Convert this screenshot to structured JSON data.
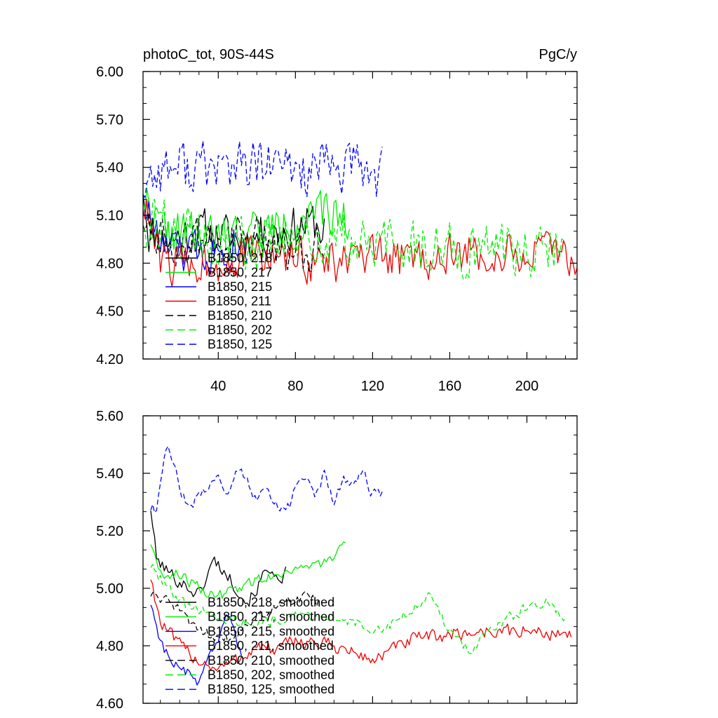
{
  "figure": {
    "title_left": "photoC_tot, 90S-44S",
    "title_right": "PgC/y"
  },
  "chart_data": [
    {
      "type": "line",
      "title": "photoC_tot, 90S-44S",
      "units": "PgC/y",
      "xlim": [
        1,
        226
      ],
      "ylim": [
        4.2,
        6.0
      ],
      "xticks": [
        40,
        80,
        120,
        160,
        200
      ],
      "xtick_labels": [
        "40",
        "80",
        "120",
        "160",
        "200"
      ],
      "yticks": [
        4.2,
        4.5,
        4.8,
        5.1,
        5.4,
        5.7,
        6.0
      ],
      "ytick_labels": [
        "4.20",
        "4.50",
        "4.80",
        "5.10",
        "5.40",
        "5.70",
        "6.00"
      ],
      "legend": "bottom-left",
      "series": [
        {
          "name": "B1850, 218",
          "color": "#000000",
          "dash": "solid",
          "noisy": true,
          "seed": 11,
          "control": [
            [
              1,
              5.3
            ],
            [
              4,
              5.0
            ],
            [
              15,
              4.95
            ],
            [
              30,
              5.0
            ],
            [
              50,
              4.95
            ],
            [
              70,
              5.0
            ],
            [
              90,
              5.05
            ],
            [
              95,
              5.0
            ]
          ],
          "amp": 0.28
        },
        {
          "name": "B1850, 217",
          "color": "#00ee00",
          "dash": "solid",
          "noisy": true,
          "seed": 22,
          "control": [
            [
              1,
              5.25
            ],
            [
              10,
              5.0
            ],
            [
              40,
              4.95
            ],
            [
              60,
              5.0
            ],
            [
              80,
              5.05
            ],
            [
              100,
              5.1
            ],
            [
              108,
              5.1
            ]
          ],
          "amp": 0.3
        },
        {
          "name": "B1850, 215",
          "color": "#0000ff",
          "dash": "solid",
          "noisy": true,
          "seed": 33,
          "control": [
            [
              1,
              5.2
            ],
            [
              10,
              4.9
            ],
            [
              25,
              4.85
            ],
            [
              40,
              4.9
            ],
            [
              50,
              4.95
            ],
            [
              55,
              4.9
            ]
          ],
          "amp": 0.3
        },
        {
          "name": "B1850, 211",
          "color": "#ee0000",
          "dash": "solid",
          "noisy": true,
          "seed": 44,
          "control": [
            [
              1,
              5.2
            ],
            [
              10,
              4.8
            ],
            [
              30,
              4.8
            ],
            [
              60,
              4.85
            ],
            [
              100,
              4.8
            ],
            [
              160,
              4.85
            ],
            [
              200,
              4.85
            ],
            [
              226,
              4.85
            ]
          ],
          "amp": 0.28
        },
        {
          "name": "B1850, 210",
          "color": "#000000",
          "dash": "dash",
          "noisy": true,
          "seed": 55,
          "control": [
            [
              1,
              5.1
            ],
            [
              20,
              4.9
            ],
            [
              50,
              4.95
            ],
            [
              80,
              4.9
            ],
            [
              95,
              4.9
            ]
          ],
          "amp": 0.3
        },
        {
          "name": "B1850, 202",
          "color": "#00ee00",
          "dash": "dash",
          "noisy": true,
          "seed": 66,
          "control": [
            [
              1,
              5.1
            ],
            [
              40,
              4.9
            ],
            [
              90,
              4.95
            ],
            [
              130,
              4.9
            ],
            [
              170,
              4.9
            ],
            [
              220,
              4.9
            ]
          ],
          "amp": 0.35
        },
        {
          "name": "B1850, 125",
          "color": "#0000ff",
          "dash": "dash",
          "noisy": true,
          "seed": 77,
          "control": [
            [
              1,
              5.3
            ],
            [
              10,
              5.4
            ],
            [
              30,
              5.4
            ],
            [
              60,
              5.4
            ],
            [
              90,
              5.38
            ],
            [
              110,
              5.4
            ],
            [
              125,
              5.35
            ]
          ],
          "amp": 0.35
        }
      ]
    },
    {
      "type": "line",
      "title": "",
      "xlim": [
        1,
        226
      ],
      "ylim": [
        4.6,
        5.6
      ],
      "xticks": [
        40,
        80,
        120,
        160,
        200
      ],
      "xtick_labels": [],
      "yticks": [
        4.6,
        4.8,
        5.0,
        5.2,
        5.4,
        5.6
      ],
      "ytick_labels": [
        "4.60",
        "4.80",
        "5.00",
        "5.20",
        "5.40",
        "5.60"
      ],
      "legend": "bottom-left",
      "series": [
        {
          "name": "B1850, 218, smoothed",
          "color": "#000000",
          "dash": "solid",
          "seed": 101,
          "amp": 0.05,
          "control": [
            [
              5,
              5.28
            ],
            [
              8,
              5.1
            ],
            [
              15,
              5.05
            ],
            [
              25,
              5.0
            ],
            [
              30,
              4.98
            ],
            [
              38,
              5.1
            ],
            [
              44,
              5.05
            ],
            [
              50,
              5.0
            ],
            [
              55,
              4.95
            ],
            [
              60,
              5.0
            ],
            [
              64,
              5.05
            ],
            [
              68,
              5.08
            ],
            [
              72,
              5.0
            ],
            [
              75,
              5.05
            ]
          ]
        },
        {
          "name": "B1850, 217, smoothed",
          "color": "#00ee00",
          "dash": "solid",
          "seed": 102,
          "amp": 0.04,
          "control": [
            [
              5,
              5.16
            ],
            [
              10,
              5.05
            ],
            [
              20,
              5.05
            ],
            [
              30,
              5.0
            ],
            [
              40,
              4.97
            ],
            [
              50,
              5.0
            ],
            [
              60,
              5.03
            ],
            [
              70,
              5.05
            ],
            [
              80,
              5.07
            ],
            [
              90,
              5.08
            ],
            [
              100,
              5.1
            ],
            [
              106,
              5.15
            ]
          ]
        },
        {
          "name": "B1850, 215, smoothed",
          "color": "#0000ff",
          "dash": "solid",
          "seed": 103,
          "amp": 0.04,
          "control": [
            [
              5,
              4.95
            ],
            [
              10,
              4.82
            ],
            [
              15,
              4.75
            ],
            [
              20,
              4.72
            ],
            [
              25,
              4.7
            ],
            [
              30,
              4.67
            ],
            [
              35,
              4.75
            ],
            [
              40,
              4.8
            ],
            [
              44,
              4.9
            ],
            [
              48,
              4.88
            ],
            [
              52,
              4.75
            ]
          ]
        },
        {
          "name": "B1850, 211, smoothed",
          "color": "#ee0000",
          "dash": "solid",
          "seed": 104,
          "amp": 0.05,
          "control": [
            [
              5,
              5.04
            ],
            [
              10,
              4.88
            ],
            [
              20,
              4.8
            ],
            [
              30,
              4.75
            ],
            [
              40,
              4.72
            ],
            [
              50,
              4.75
            ],
            [
              60,
              4.8
            ],
            [
              70,
              4.78
            ],
            [
              80,
              4.82
            ],
            [
              100,
              4.8
            ],
            [
              120,
              4.75
            ],
            [
              140,
              4.82
            ],
            [
              160,
              4.84
            ],
            [
              180,
              4.85
            ],
            [
              200,
              4.85
            ],
            [
              220,
              4.84
            ],
            [
              223,
              4.83
            ]
          ]
        },
        {
          "name": "B1850, 210, smoothed",
          "color": "#000000",
          "dash": "dash",
          "seed": 105,
          "amp": 0.04,
          "control": [
            [
              5,
              4.98
            ],
            [
              15,
              4.95
            ],
            [
              30,
              4.85
            ],
            [
              45,
              4.82
            ],
            [
              60,
              4.9
            ],
            [
              75,
              4.95
            ],
            [
              85,
              4.97
            ],
            [
              92,
              4.95
            ]
          ]
        },
        {
          "name": "B1850, 202, smoothed",
          "color": "#00ee00",
          "dash": "dash",
          "seed": 106,
          "amp": 0.04,
          "control": [
            [
              5,
              5.08
            ],
            [
              20,
              4.95
            ],
            [
              40,
              4.9
            ],
            [
              60,
              4.88
            ],
            [
              80,
              4.9
            ],
            [
              100,
              4.9
            ],
            [
              120,
              4.86
            ],
            [
              130,
              4.88
            ],
            [
              140,
              4.93
            ],
            [
              150,
              4.98
            ],
            [
              160,
              4.85
            ],
            [
              170,
              4.78
            ],
            [
              180,
              4.85
            ],
            [
              190,
              4.9
            ],
            [
              200,
              4.93
            ],
            [
              210,
              4.95
            ],
            [
              220,
              4.88
            ]
          ]
        },
        {
          "name": "B1850, 125, smoothed",
          "color": "#0000ff",
          "dash": "dash",
          "seed": 107,
          "amp": 0.04,
          "control": [
            [
              5,
              5.28
            ],
            [
              8,
              5.27
            ],
            [
              12,
              5.45
            ],
            [
              14,
              5.48
            ],
            [
              17,
              5.45
            ],
            [
              20,
              5.35
            ],
            [
              23,
              5.3
            ],
            [
              26,
              5.28
            ],
            [
              30,
              5.33
            ],
            [
              35,
              5.36
            ],
            [
              40,
              5.4
            ],
            [
              45,
              5.33
            ],
            [
              50,
              5.42
            ],
            [
              55,
              5.38
            ],
            [
              60,
              5.3
            ],
            [
              65,
              5.35
            ],
            [
              70,
              5.3
            ],
            [
              75,
              5.25
            ],
            [
              80,
              5.35
            ],
            [
              85,
              5.38
            ],
            [
              90,
              5.32
            ],
            [
              95,
              5.4
            ],
            [
              100,
              5.3
            ],
            [
              105,
              5.38
            ],
            [
              110,
              5.37
            ],
            [
              115,
              5.4
            ],
            [
              120,
              5.33
            ],
            [
              125,
              5.32
            ]
          ]
        }
      ]
    }
  ]
}
